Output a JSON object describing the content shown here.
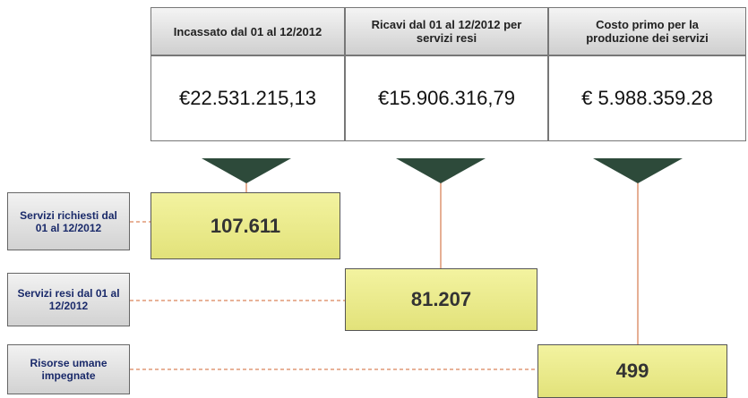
{
  "columns": [
    {
      "title": "Incassato dal 01 al 12/2012",
      "value": "€22.531.215,13"
    },
    {
      "title": "Ricavi dal 01 al 12/2012 per servizi resi",
      "value": "€15.906.316,79"
    },
    {
      "title": "Costo primo per la produzione dei servizi",
      "value": "€ 5.988.359.28"
    }
  ],
  "rows": [
    {
      "label": "Servizi richiesti dal 01 al 12/2012",
      "value": "107.611"
    },
    {
      "label": "Servizi resi dal 01 al 12/2012",
      "value": "81.207"
    },
    {
      "label": "Risorse umane impegnate",
      "value": "499"
    }
  ]
}
